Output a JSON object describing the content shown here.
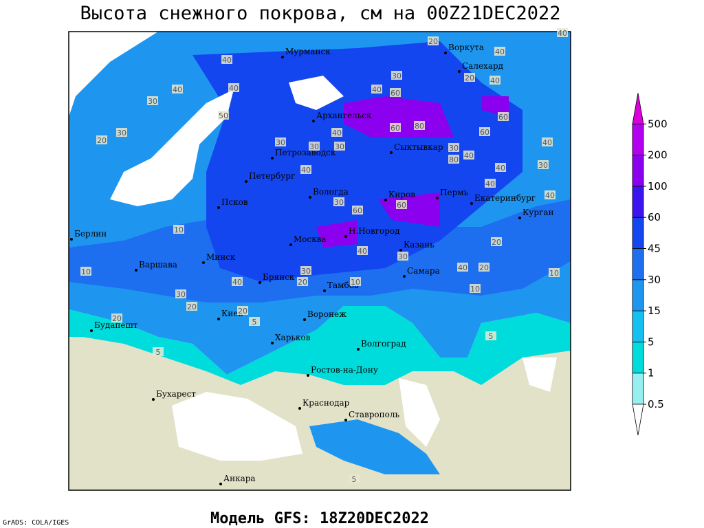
{
  "title": "Высота снежного покрова, см на 00Z21DEC2022",
  "footer": "Модель GFS: 18Z20DEC2022",
  "credit": "GrADS: COLA/IGES",
  "cities": [
    "Мурманск",
    "Архангельск",
    "Воркута",
    "Салехард",
    "Сыктывкар",
    "Петрозаводск",
    "Петербург",
    "Вологда",
    "Киров",
    "Пермь",
    "Екатеринбург",
    "Курган",
    "Псков",
    "Н.Новгород",
    "Москва",
    "Казань",
    "Берлин",
    "Варшава",
    "Минск",
    "Брянск",
    "Тамбов",
    "Самара",
    "Киев",
    "Воронеж",
    "Будапешт",
    "Харьков",
    "Волгоград",
    "Ростов-на-Дону",
    "Бухарест",
    "Краснодар",
    "Ставрополь",
    "Анкара"
  ],
  "contour_labels": [
    40,
    30,
    40,
    60,
    40,
    40,
    30,
    50,
    30,
    20,
    60,
    80,
    40,
    60,
    60,
    20,
    40,
    30,
    30,
    30,
    30,
    80,
    40,
    40,
    30,
    40,
    40,
    40,
    40,
    30,
    60,
    60,
    10,
    20,
    40,
    30,
    40,
    20,
    10,
    10,
    30,
    20,
    10,
    40,
    30,
    20,
    20,
    5,
    20,
    5,
    5,
    5,
    10,
    40,
    20,
    40
  ],
  "colorbar": {
    "levels": [
      0.5,
      1,
      5,
      15,
      30,
      45,
      60,
      100,
      200,
      500
    ],
    "colors": [
      "#96f0f0",
      "#00dcdc",
      "#14c0f0",
      "#1e96f0",
      "#1e6ef0",
      "#1446f0",
      "#3c14f0",
      "#8c00f0",
      "#b400f0"
    ],
    "under_color": "#ffffff",
    "over_color": "#dc00dc"
  }
}
